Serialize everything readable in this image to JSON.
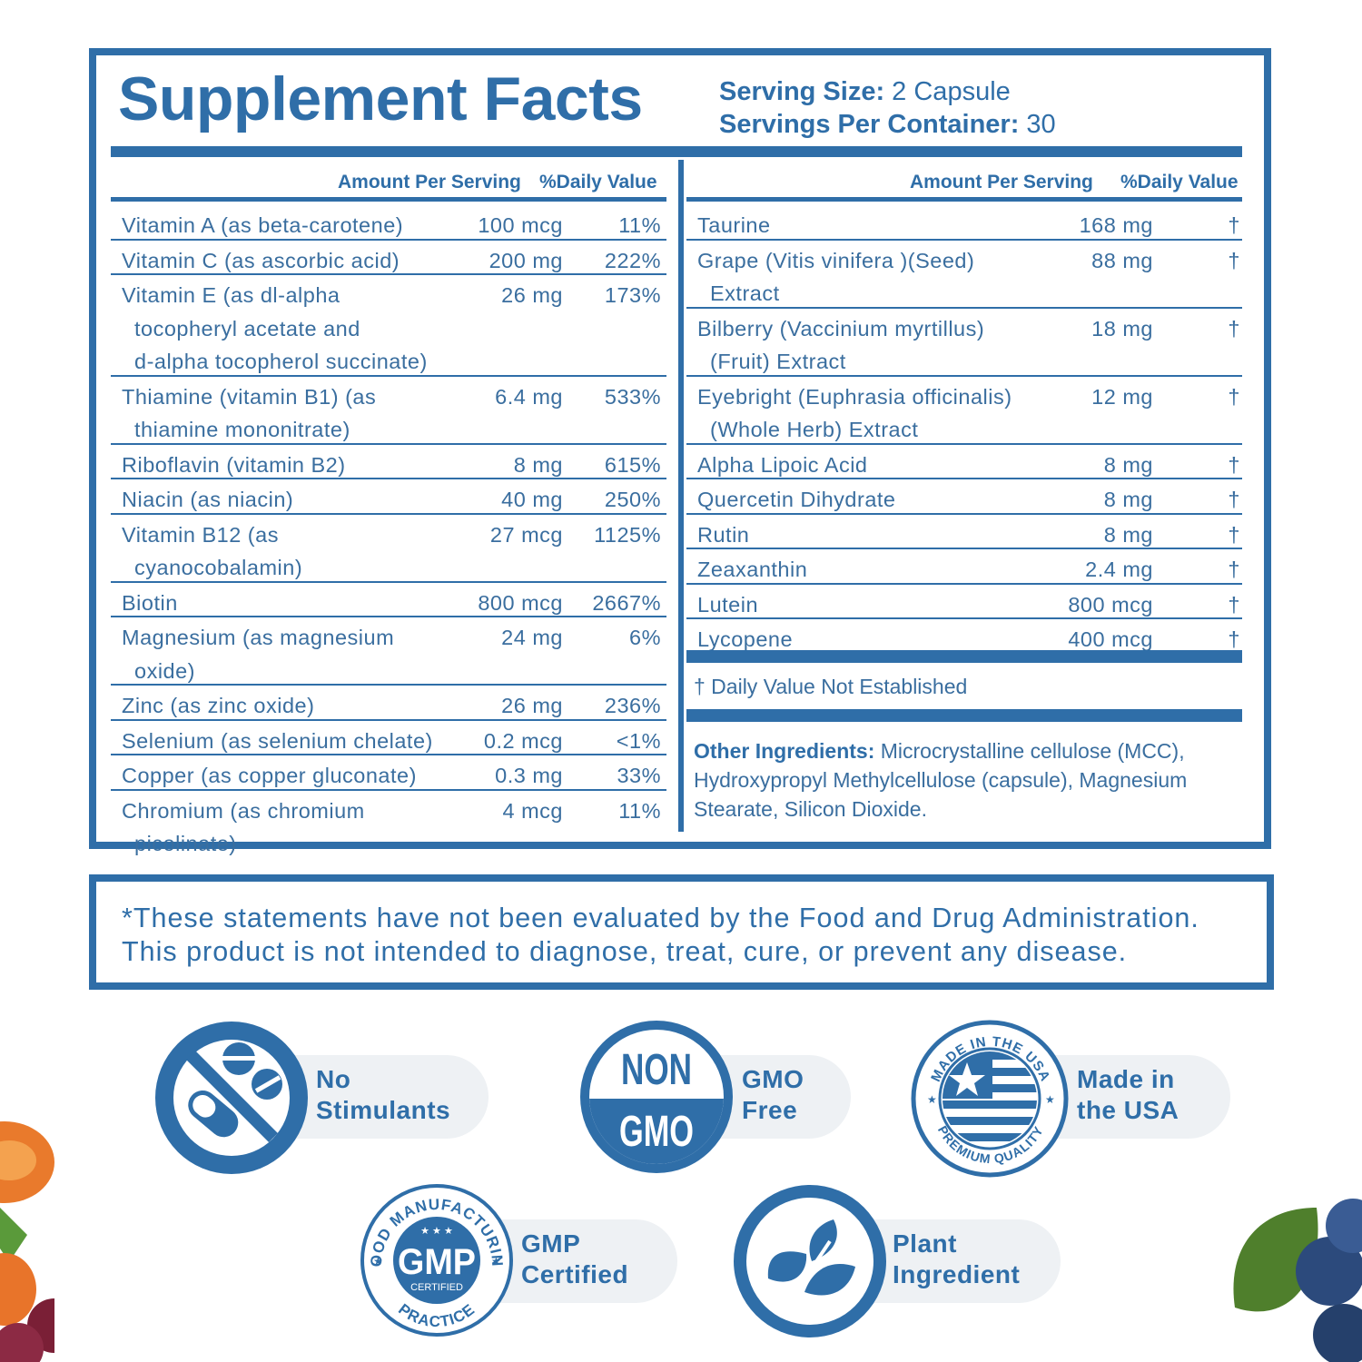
{
  "facts": {
    "title": "Supplement Facts",
    "serving_size_label": "Serving Size:",
    "serving_size_value": " 2 Capsule",
    "servings_label": "Servings Per Container:",
    "servings_value": " 30",
    "left_headers": {
      "amount": "Amount Per Serving",
      "dv": "%Daily Value"
    },
    "right_headers": {
      "amount": "Amount Per Serving",
      "dv": "%Daily Value"
    },
    "left_rows": [
      {
        "lines": [
          "Vitamin A (as beta-carotene)"
        ],
        "amount": "100 mcg",
        "dv": "11%"
      },
      {
        "lines": [
          "Vitamin C (as ascorbic acid)"
        ],
        "amount": "200 mg",
        "dv": "222%"
      },
      {
        "lines": [
          "Vitamin E (as dl-alpha",
          "tocopheryl acetate and",
          "d-alpha tocopherol succinate)"
        ],
        "amount": "26 mg",
        "dv": "173%"
      },
      {
        "lines": [
          "Thiamine (vitamin B1) (as",
          "thiamine mononitrate)"
        ],
        "amount": "6.4 mg",
        "dv": "533%"
      },
      {
        "lines": [
          "Riboflavin (vitamin B2)"
        ],
        "amount": "8 mg",
        "dv": "615%"
      },
      {
        "lines": [
          "Niacin (as niacin)"
        ],
        "amount": "40 mg",
        "dv": "250%"
      },
      {
        "lines": [
          "Vitamin B12 (as",
          "cyanocobalamin)"
        ],
        "amount": "27 mcg",
        "dv": "1125%"
      },
      {
        "lines": [
          "Biotin"
        ],
        "amount": "800 mcg",
        "dv": "2667%"
      },
      {
        "lines": [
          "Magnesium (as magnesium",
          "oxide)"
        ],
        "amount": "24 mg",
        "dv": "6%"
      },
      {
        "lines": [
          "Zinc (as zinc oxide)"
        ],
        "amount": "26 mg",
        "dv": "236%"
      },
      {
        "lines": [
          "Selenium (as selenium chelate)"
        ],
        "amount": "0.2 mcg",
        "dv": "<1%"
      },
      {
        "lines": [
          "Copper (as copper gluconate)"
        ],
        "amount": "0.3 mg",
        "dv": "33%"
      },
      {
        "lines": [
          "Chromium (as chromium",
          "picolinate)"
        ],
        "amount": "4 mcg",
        "dv": "11%"
      }
    ],
    "right_rows": [
      {
        "lines": [
          "Taurine"
        ],
        "amount": "168 mg",
        "dv": "†"
      },
      {
        "lines": [
          "Grape (Vitis vinifera )(Seed)",
          "Extract"
        ],
        "amount": "88 mg",
        "dv": "†"
      },
      {
        "lines": [
          "Bilberry (Vaccinium myrtillus)",
          "(Fruit) Extract"
        ],
        "amount": "18 mg",
        "dv": "†"
      },
      {
        "lines": [
          "Eyebright (Euphrasia officinalis)",
          "(Whole Herb) Extract"
        ],
        "amount": "12 mg",
        "dv": "†"
      },
      {
        "lines": [
          "Alpha Lipoic Acid"
        ],
        "amount": "8 mg",
        "dv": "†"
      },
      {
        "lines": [
          "Quercetin Dihydrate"
        ],
        "amount": "8 mg",
        "dv": "†"
      },
      {
        "lines": [
          "Rutin"
        ],
        "amount": "8 mg",
        "dv": "†"
      },
      {
        "lines": [
          "Zeaxanthin"
        ],
        "amount": "2.4 mg",
        "dv": "†"
      },
      {
        "lines": [
          "Lutein"
        ],
        "amount": "800 mcg",
        "dv": "†"
      },
      {
        "lines": [
          "Lycopene"
        ],
        "amount": "400 mcg",
        "dv": "†"
      }
    ],
    "dv_note": "† Daily Value Not Established",
    "other_label": "Other Ingredients:",
    "other_text": " Microcrystalline cellulose (MCC), Hydroxypropyl Methylcellulose (capsule), Magnesium Stearate, Silicon Dioxide."
  },
  "disclaimer": {
    "line1": "*These statements have not been evaluated by the Food and Drug Administration.",
    "line2": "This product is not intended to diagnose, treat, cure, or prevent any disease."
  },
  "badges": {
    "no_stimulants": {
      "line1": "No",
      "line2": "Stimulants",
      "icon": "no-pills-icon"
    },
    "non_gmo": {
      "line1": "GMO",
      "line2": "Free",
      "icon_top": "NON",
      "icon_bottom": "GMO"
    },
    "usa": {
      "line1": "Made in",
      "line2": "the USA",
      "ring_top": "MADE IN THE USA",
      "ring_bottom": "PREMIUM QUALITY"
    },
    "gmp": {
      "line1": "GMP",
      "line2": "Certified",
      "ring_top": "GOOD MANUFACTURING",
      "ring_bottom": "PRACTICE",
      "center": "GMP",
      "center_sub": "CERTIFIED"
    },
    "plant": {
      "line1": "Plant",
      "line2": "Ingredient",
      "icon": "leaf-icon"
    }
  },
  "colors": {
    "brand_blue": "#2f6ea8",
    "pill_bg": "#eef1f4"
  }
}
